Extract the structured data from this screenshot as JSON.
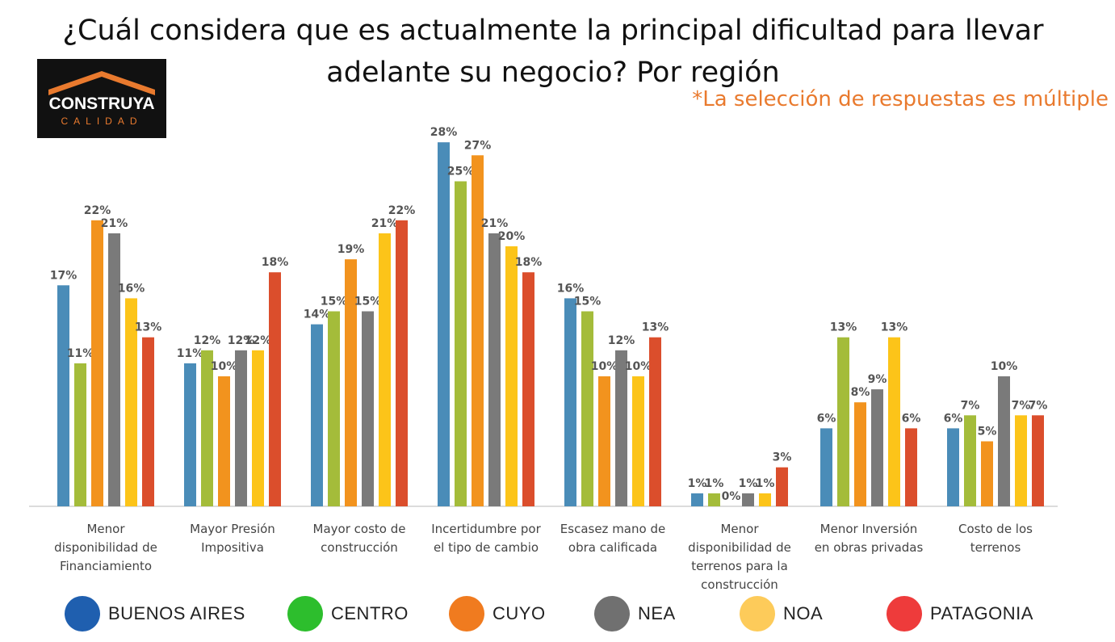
{
  "header": {
    "title": "¿Cuál considera que es actualmente la principal dificultad para llevar adelante su negocio? Por región",
    "note": "*La selección de respuestas es múltiple"
  },
  "logo": {
    "main": "CONSTRUYA",
    "sub": "CALIDAD"
  },
  "legend": {
    "items": [
      {
        "label": "BUENOS AIRES",
        "color": "#1F5FAF"
      },
      {
        "label": "CENTRO",
        "color": "#2DBE2D"
      },
      {
        "label": "CUYO",
        "color": "#F07B1F"
      },
      {
        "label": "NEA",
        "color": "#707070"
      },
      {
        "label": "NOA",
        "color": "#FDCB5A"
      },
      {
        "label": "PATAGONIA",
        "color": "#EE3B3B"
      }
    ]
  },
  "chart_data": {
    "type": "bar",
    "categories": [
      [
        "Menor",
        "disponibilidad de",
        "Financiamiento"
      ],
      [
        "Mayor Presión",
        "Impositiva"
      ],
      [
        "Mayor costo de",
        "construcción"
      ],
      [
        "Incertidumbre por",
        "el tipo de cambio"
      ],
      [
        "Escasez mano de",
        "obra calificada"
      ],
      [
        "Menor",
        "disponibilidad de",
        "terrenos para la",
        "construcción"
      ],
      [
        "Menor Inversión",
        "en obras privadas"
      ],
      [
        "Costo de los",
        "terrenos"
      ]
    ],
    "series": [
      {
        "name": "BUENOS AIRES",
        "color": "#4A8CB8",
        "values": [
          17,
          11,
          14,
          28,
          16,
          1,
          6,
          6
        ]
      },
      {
        "name": "CENTRO",
        "color": "#A4BC3A",
        "values": [
          11,
          12,
          15,
          25,
          15,
          1,
          13,
          7
        ]
      },
      {
        "name": "CUYO",
        "color": "#F2931E",
        "values": [
          22,
          10,
          19,
          27,
          10,
          0,
          8,
          5
        ]
      },
      {
        "name": "NEA",
        "color": "#7A7A7A",
        "values": [
          21,
          12,
          15,
          21,
          12,
          1,
          9,
          10
        ]
      },
      {
        "name": "NOA",
        "color": "#FCC419",
        "values": [
          16,
          12,
          21,
          20,
          10,
          1,
          13,
          7
        ]
      },
      {
        "name": "PATAGONIA",
        "color": "#DB4E2C",
        "values": [
          13,
          18,
          22,
          18,
          13,
          3,
          6,
          7
        ]
      }
    ],
    "ylim": [
      0,
      28
    ],
    "value_suffix": "%"
  }
}
